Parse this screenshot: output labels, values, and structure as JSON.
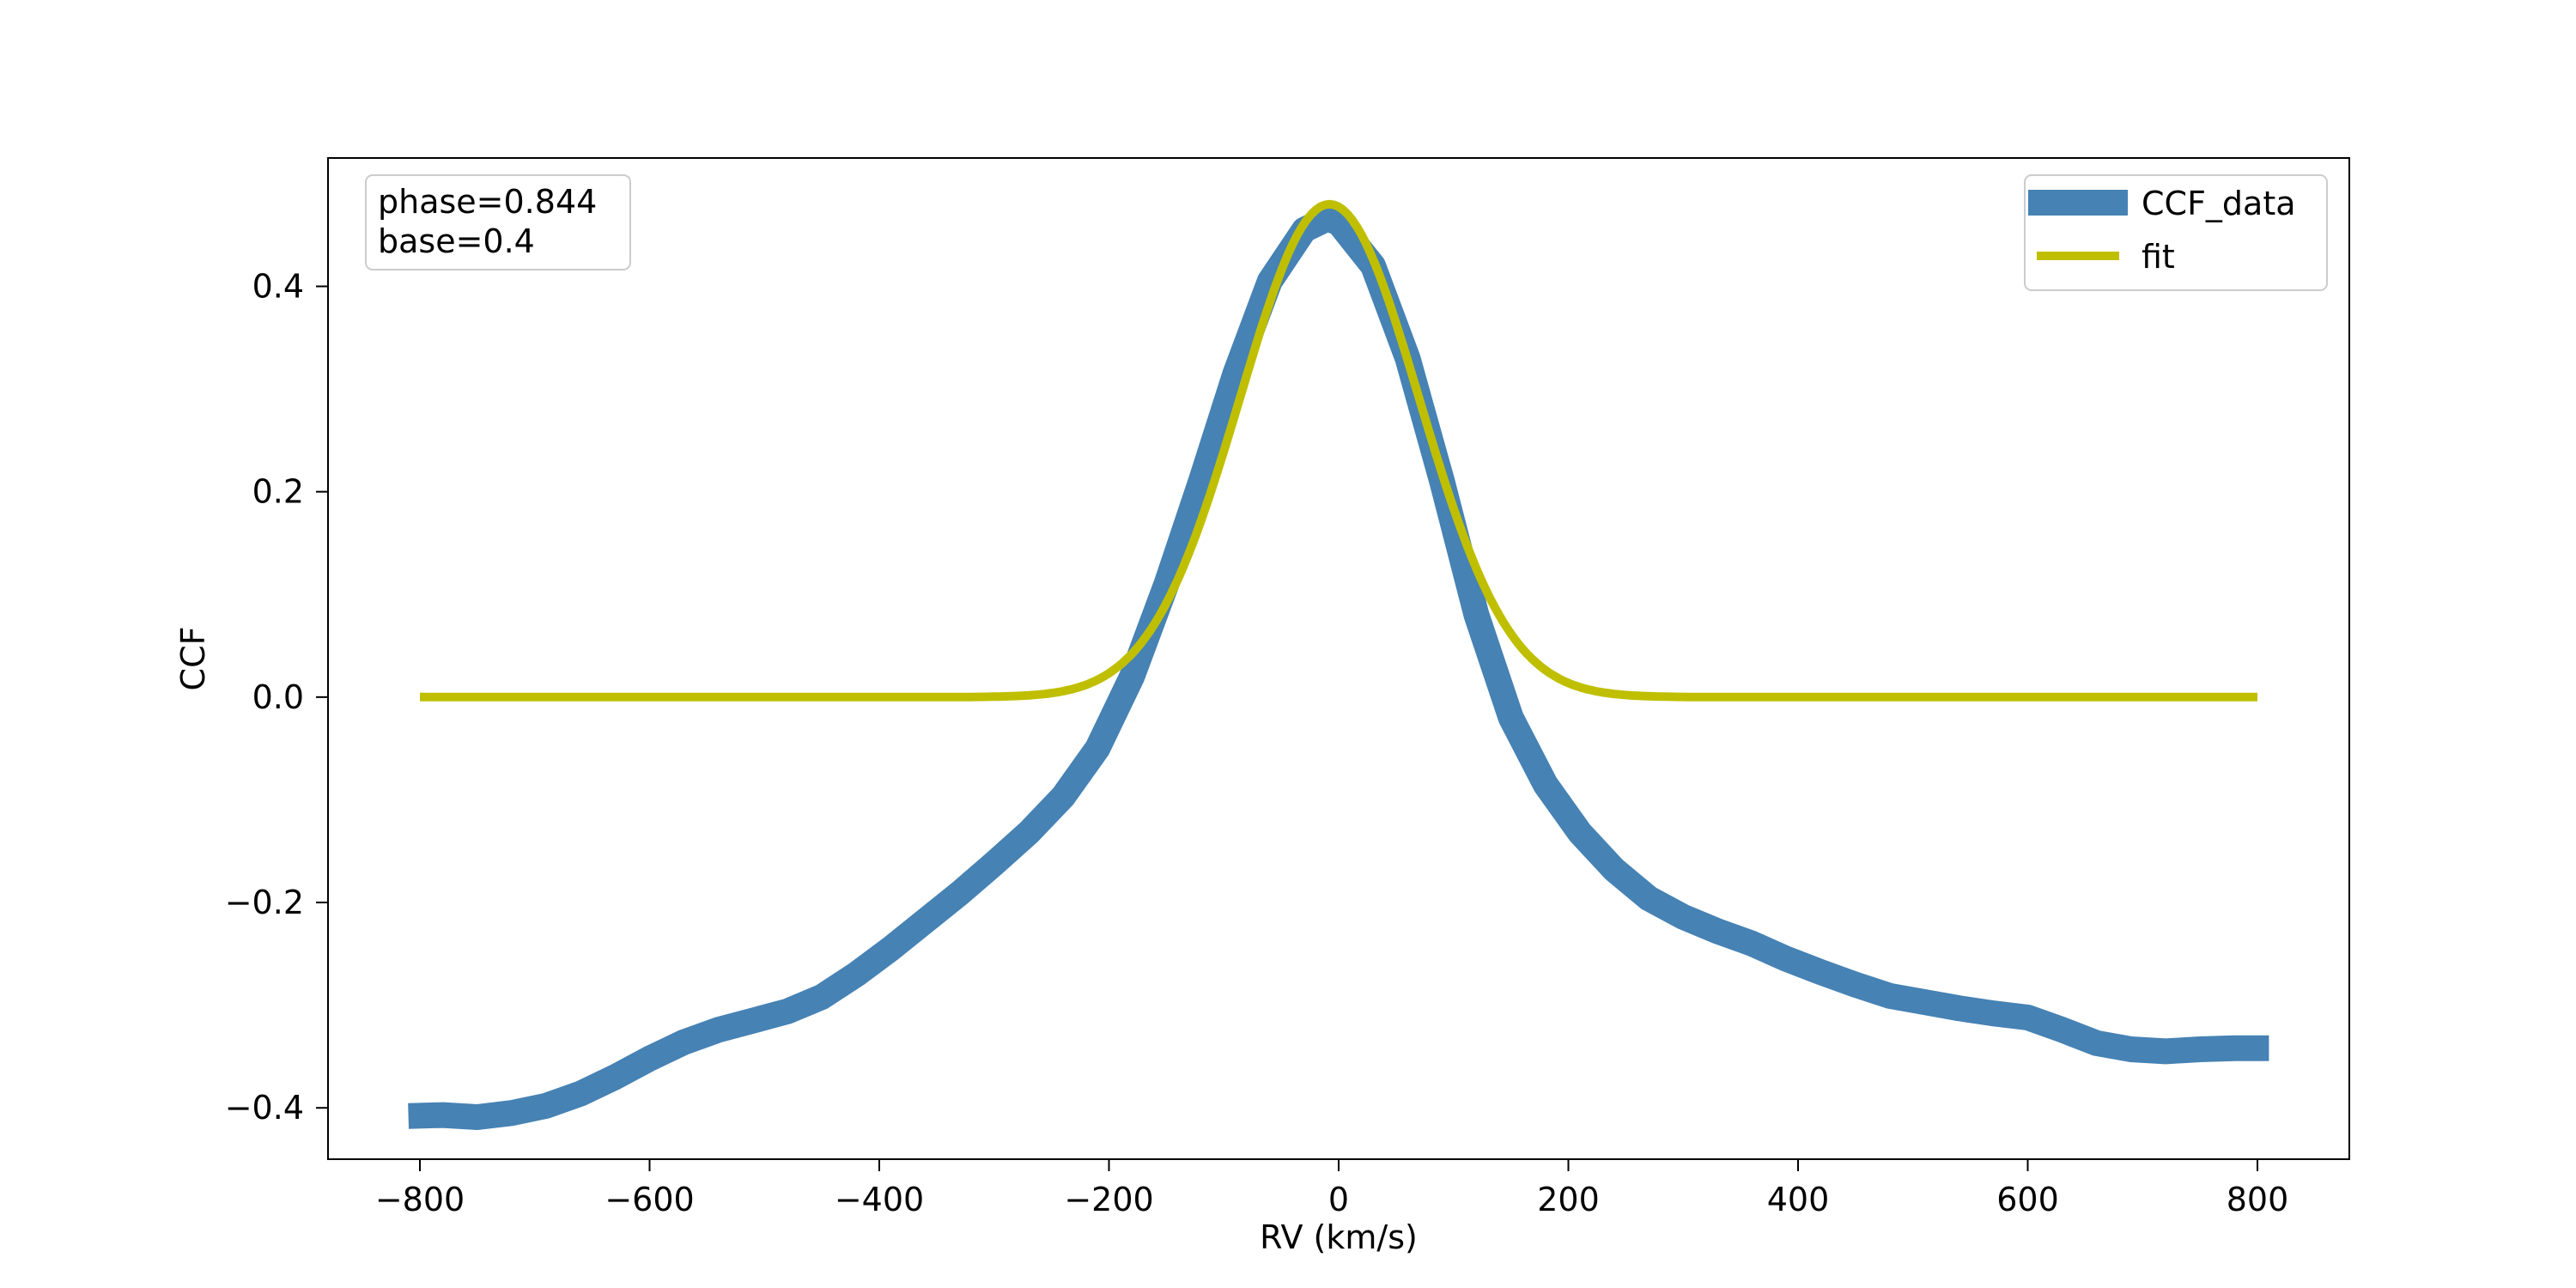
{
  "chart_data": {
    "type": "line",
    "xlabel": "RV (km/s)",
    "ylabel": "CCF",
    "xlim": [
      -880,
      880
    ],
    "ylim": [
      -0.45,
      0.525
    ],
    "xticks": [
      -800,
      -600,
      -400,
      -200,
      0,
      200,
      400,
      600,
      800
    ],
    "xtick_labels": [
      "−800",
      "−600",
      "−400",
      "−200",
      "0",
      "200",
      "400",
      "600",
      "800"
    ],
    "yticks": [
      -0.4,
      -0.2,
      0.0,
      0.2,
      0.4
    ],
    "ytick_labels": [
      "−0.4",
      "−0.2",
      "0.0",
      "0.2",
      "0.4"
    ],
    "grid": false,
    "legend_position": "top-right",
    "annotation": {
      "lines": [
        "phase=0.844",
        "base=0.4"
      ],
      "position": "top-left"
    },
    "series": [
      {
        "name": "CCF_data",
        "color": "#4682b4",
        "x": [
          -810,
          -780,
          -750,
          -720,
          -690,
          -660,
          -630,
          -600,
          -570,
          -540,
          -510,
          -480,
          -450,
          -420,
          -390,
          -360,
          -330,
          -300,
          -270,
          -240,
          -210,
          -180,
          -150,
          -120,
          -90,
          -60,
          -30,
          -10,
          0,
          30,
          60,
          90,
          120,
          150,
          180,
          210,
          240,
          270,
          300,
          330,
          360,
          390,
          420,
          450,
          480,
          510,
          540,
          570,
          600,
          630,
          660,
          690,
          720,
          750,
          780,
          810
        ],
        "y": [
          -0.408,
          -0.407,
          -0.409,
          -0.405,
          -0.398,
          -0.386,
          -0.37,
          -0.352,
          -0.336,
          -0.324,
          -0.315,
          -0.306,
          -0.292,
          -0.27,
          -0.245,
          -0.218,
          -0.191,
          -0.162,
          -0.132,
          -0.097,
          -0.05,
          0.02,
          0.11,
          0.21,
          0.315,
          0.405,
          0.455,
          0.466,
          0.462,
          0.42,
          0.33,
          0.21,
          0.08,
          -0.02,
          -0.085,
          -0.132,
          -0.168,
          -0.196,
          -0.214,
          -0.228,
          -0.24,
          -0.255,
          -0.268,
          -0.28,
          -0.291,
          -0.297,
          -0.303,
          -0.308,
          -0.312,
          -0.324,
          -0.337,
          -0.343,
          -0.345,
          -0.343,
          -0.342,
          -0.342
        ]
      },
      {
        "name": "fit",
        "color": "#bfbf00",
        "model": "gaussian",
        "amplitude": 0.48,
        "center": -8,
        "sigma": 78,
        "x_range": [
          -800,
          800
        ]
      }
    ]
  }
}
